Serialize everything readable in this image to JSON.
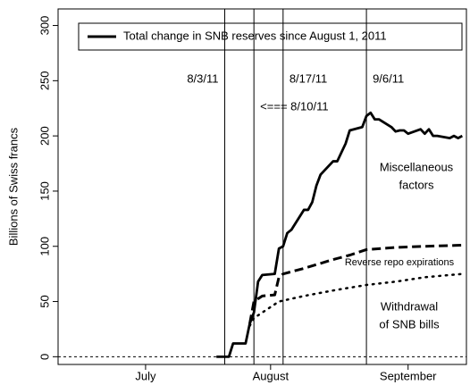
{
  "chart_data": {
    "type": "line",
    "y_label": "Billions of Swiss francs",
    "ylim": [
      -7,
      315
    ],
    "yticks": [
      0,
      50,
      100,
      150,
      200,
      250,
      300
    ],
    "xlim": [
      "6/24/11",
      "9/30/11"
    ],
    "xticks": [
      {
        "value": "7/15/11",
        "label": "July"
      },
      {
        "value": "8/14/11",
        "label": "August"
      },
      {
        "value": "9/16/11",
        "label": "September"
      }
    ],
    "reference_line": 0,
    "series": [
      {
        "name": "Total change in SNB reserves since August 1, 2011",
        "color": "#000000",
        "style": "solid",
        "x": [
          "8/1/11",
          "8/2/11",
          "8/3/11",
          "8/4/11",
          "8/5/11",
          "8/8/11",
          "8/9/11",
          "8/10/11",
          "8/11/11",
          "8/12/11",
          "8/15/11",
          "8/16/11",
          "8/17/11",
          "8/18/11",
          "8/19/11",
          "8/22/11",
          "8/23/11",
          "8/24/11",
          "8/25/11",
          "8/26/11",
          "8/29/11",
          "8/30/11",
          "8/31/11",
          "9/1/11",
          "9/2/11",
          "9/5/11",
          "9/6/11",
          "9/7/11",
          "9/8/11",
          "9/9/11",
          "9/12/11",
          "9/13/11",
          "9/14/11",
          "9/15/11",
          "9/16/11",
          "9/19/11",
          "9/20/11",
          "9/21/11",
          "9/22/11",
          "9/23/11",
          "9/26/11",
          "9/27/11",
          "9/28/11",
          "9/29/11"
        ],
        "values": [
          0,
          0,
          0,
          0,
          12,
          12,
          30,
          40,
          68,
          74,
          75,
          98,
          100,
          112,
          115,
          133,
          133,
          140,
          155,
          165,
          177,
          177,
          185,
          193,
          205,
          208,
          218,
          221,
          215,
          215,
          208,
          204,
          205,
          205,
          202,
          206,
          202,
          206,
          200,
          200,
          198,
          200,
          198,
          200
        ]
      },
      {
        "color": "#000000",
        "style": "dashed",
        "x": [
          "8/9/11",
          "8/10/11",
          "8/12/11",
          "8/15/11",
          "8/16/11",
          "8/17/11",
          "8/22/11",
          "8/29/11",
          "9/2/11",
          "9/6/11",
          "9/13/11",
          "9/20/11",
          "9/29/11"
        ],
        "values": [
          30,
          50,
          55,
          56,
          72,
          75,
          80,
          88,
          92,
          97,
          99,
          100,
          101
        ]
      },
      {
        "color": "#000000",
        "style": "dotted",
        "x": [
          "8/9/11",
          "8/10/11",
          "8/12/11",
          "8/16/11",
          "8/22/11",
          "8/29/11",
          "9/6/11",
          "9/13/11",
          "9/20/11",
          "9/29/11"
        ],
        "values": [
          28,
          35,
          40,
          50,
          55,
          60,
          65,
          68,
          72,
          75
        ]
      }
    ],
    "vertical_lines": [
      {
        "x": "8/3/11",
        "label": "8/3/11"
      },
      {
        "x": "8/10/11",
        "label": "<=== 8/10/11"
      },
      {
        "x": "8/17/11",
        "label": "8/17/11"
      },
      {
        "x": "9/6/11",
        "label": "9/6/11"
      }
    ],
    "annotations": [
      [
        "Miscellaneous",
        "factors"
      ],
      [
        "Reverse repo expirations"
      ],
      [
        "Withdrawal",
        "of SNB bills"
      ]
    ]
  }
}
